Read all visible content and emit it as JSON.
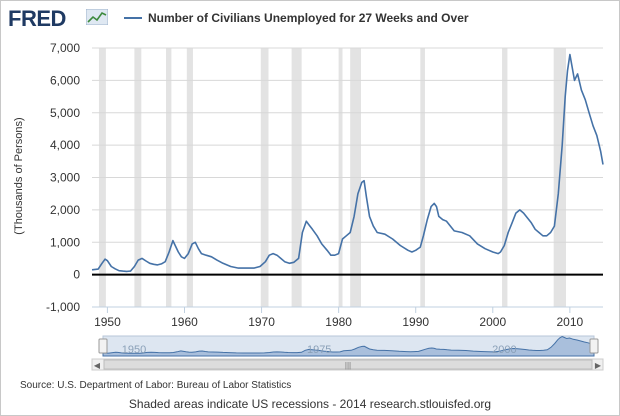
{
  "header": {
    "logo_text": "FRED",
    "logo_icon": "chart-line-icon",
    "legend_label": "Number of Civilians Unemployed for 27 Weeks and Over"
  },
  "colors": {
    "series": "#4572a7",
    "recession": "#e3e3e3",
    "zero_line": "#000000",
    "navigator_fill": "#a9bfdc"
  },
  "chart_data": {
    "type": "line",
    "title": "",
    "xlabel": "",
    "ylabel": "(Thousands of Persons)",
    "xlim": [
      1948,
      2014.3
    ],
    "ylim": [
      -1000,
      7000
    ],
    "yticks": [
      -1000,
      0,
      1000,
      2000,
      3000,
      4000,
      5000,
      6000,
      7000
    ],
    "ytick_labels": [
      "-1,000",
      "0",
      "1,000",
      "2,000",
      "3,000",
      "4,000",
      "5,000",
      "6,000",
      "7,000"
    ],
    "xticks": [
      1950,
      1960,
      1970,
      1980,
      1990,
      2000,
      2010
    ],
    "xtick_labels": [
      "1950",
      "1960",
      "1970",
      "1980",
      "1990",
      "2000",
      "2010"
    ],
    "grid": true,
    "legend_position": "top",
    "recessions": [
      [
        1948.9,
        1949.8
      ],
      [
        1953.5,
        1954.4
      ],
      [
        1957.6,
        1958.3
      ],
      [
        1960.3,
        1961.1
      ],
      [
        1969.9,
        1970.9
      ],
      [
        1973.9,
        1975.2
      ],
      [
        1980.0,
        1980.5
      ],
      [
        1981.5,
        1982.9
      ],
      [
        1990.6,
        1991.2
      ],
      [
        2001.2,
        2001.9
      ],
      [
        2007.9,
        2009.5
      ]
    ],
    "series": [
      {
        "name": "Number of Civilians Unemployed for 27 Weeks and Over",
        "x": [
          1948.0,
          1948.8,
          1949.3,
          1949.7,
          1950.0,
          1950.5,
          1951.0,
          1951.5,
          1952.0,
          1952.5,
          1953.0,
          1953.5,
          1954.0,
          1954.5,
          1955.0,
          1955.5,
          1956.0,
          1956.5,
          1957.0,
          1957.5,
          1958.0,
          1958.5,
          1958.8,
          1959.2,
          1959.6,
          1960.0,
          1960.5,
          1961.0,
          1961.4,
          1961.8,
          1962.2,
          1962.8,
          1963.5,
          1964.2,
          1965.0,
          1966.0,
          1967.0,
          1968.0,
          1969.0,
          1969.8,
          1970.5,
          1971.0,
          1971.5,
          1972.0,
          1972.5,
          1973.0,
          1973.6,
          1974.2,
          1974.8,
          1975.3,
          1975.8,
          1976.1,
          1976.6,
          1977.2,
          1977.8,
          1978.5,
          1979.0,
          1979.5,
          1980.0,
          1980.5,
          1981.0,
          1981.5,
          1982.0,
          1982.5,
          1983.0,
          1983.3,
          1983.6,
          1984.0,
          1984.5,
          1985.0,
          1986.0,
          1987.0,
          1988.0,
          1989.0,
          1989.5,
          1990.0,
          1990.6,
          1991.0,
          1991.5,
          1992.0,
          1992.4,
          1992.7,
          1993.0,
          1993.5,
          1994.0,
          1994.5,
          1995.0,
          1996.0,
          1997.0,
          1998.0,
          1999.0,
          2000.0,
          2000.7,
          2001.0,
          2001.5,
          2002.0,
          2002.5,
          2003.0,
          2003.5,
          2004.0,
          2004.5,
          2005.0,
          2005.5,
          2006.0,
          2006.5,
          2007.0,
          2007.5,
          2008.0,
          2008.5,
          2009.0,
          2009.4,
          2009.7,
          2010.0,
          2010.3,
          2010.6,
          2011.0,
          2011.5,
          2012.0,
          2012.5,
          2013.0,
          2013.5,
          2014.0,
          2014.3
        ],
        "y": [
          150,
          170,
          350,
          480,
          430,
          250,
          180,
          120,
          110,
          100,
          110,
          250,
          450,
          500,
          420,
          350,
          320,
          300,
          330,
          400,
          700,
          1050,
          900,
          700,
          550,
          500,
          650,
          950,
          1000,
          800,
          650,
          600,
          550,
          450,
          350,
          250,
          200,
          200,
          200,
          250,
          400,
          600,
          650,
          600,
          500,
          400,
          350,
          380,
          500,
          1300,
          1650,
          1550,
          1400,
          1200,
          950,
          750,
          600,
          600,
          650,
          1100,
          1200,
          1300,
          1800,
          2500,
          2850,
          2900,
          2400,
          1800,
          1500,
          1300,
          1250,
          1100,
          900,
          750,
          700,
          750,
          850,
          1200,
          1700,
          2100,
          2200,
          2100,
          1800,
          1700,
          1650,
          1500,
          1350,
          1300,
          1200,
          950,
          800,
          700,
          650,
          700,
          900,
          1300,
          1600,
          1900,
          2000,
          1900,
          1750,
          1600,
          1400,
          1300,
          1200,
          1200,
          1300,
          1500,
          2500,
          4000,
          5500,
          6300,
          6800,
          6400,
          6000,
          6200,
          5700,
          5400,
          5000,
          4600,
          4300,
          3800,
          3400
        ]
      }
    ],
    "navigator": {
      "tick_labels": [
        "1950",
        "1975",
        "2000"
      ]
    }
  },
  "footer": {
    "source": "Source: U.S. Department of Labor: Bureau of Labor Statistics",
    "note": "Shaded areas indicate US recessions - 2014 research.stlouisfed.org"
  }
}
